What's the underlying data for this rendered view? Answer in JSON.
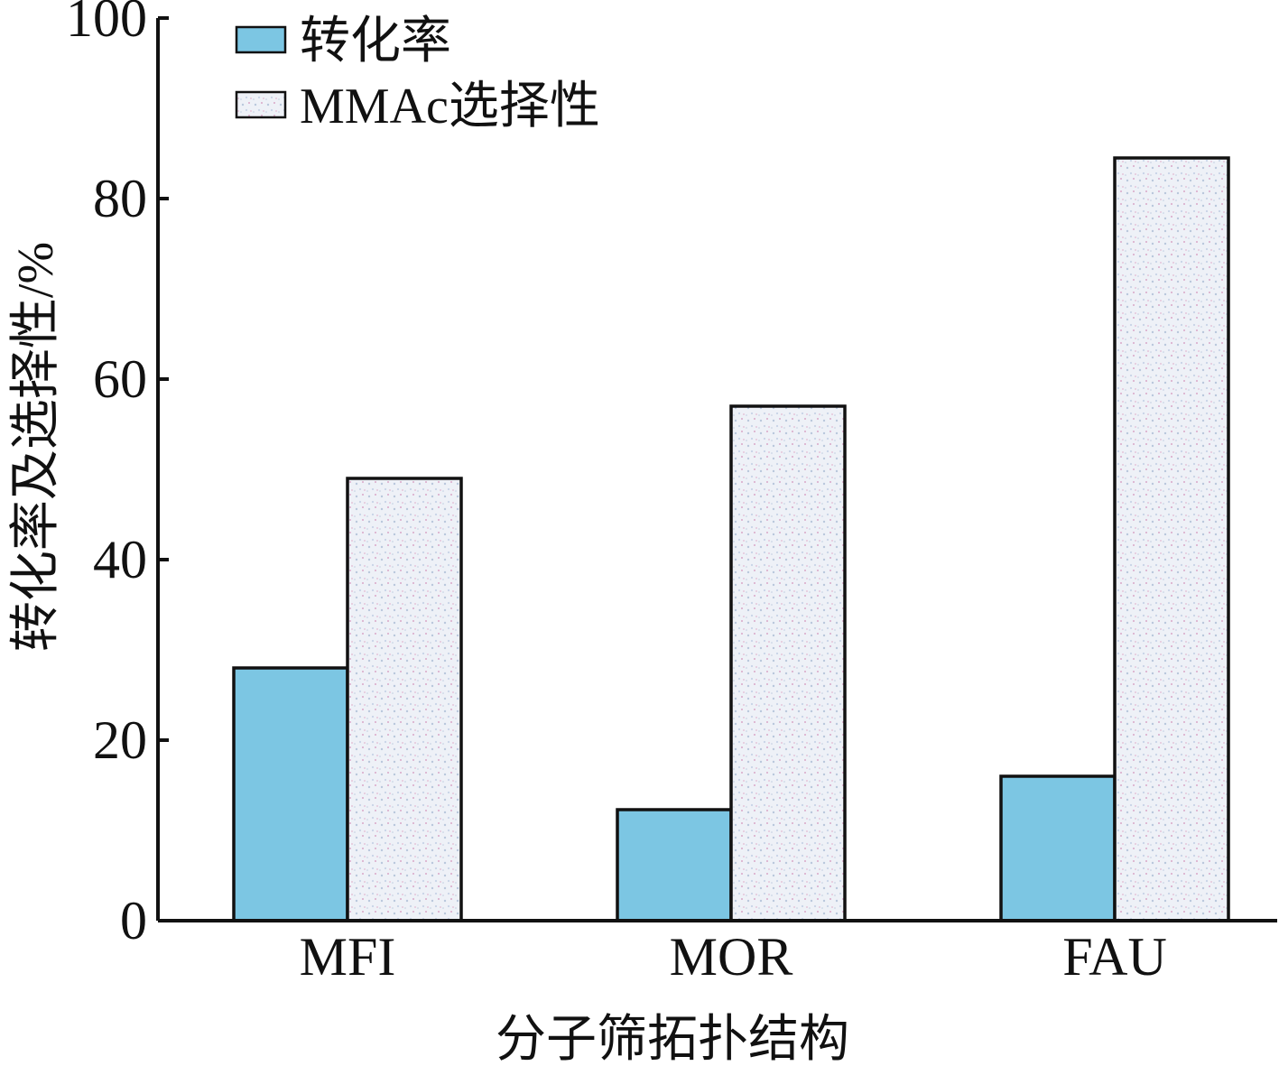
{
  "chart_data": {
    "type": "bar",
    "categories": [
      "MFI",
      "MOR",
      "FAU"
    ],
    "series": [
      {
        "name": "转化率",
        "values": [
          28,
          12.3,
          16
        ]
      },
      {
        "name": "MMAc选择性",
        "values": [
          49,
          57,
          84.5
        ]
      }
    ],
    "title": "",
    "xlabel": "分子筛拓扑结构",
    "ylabel": "转化率及选择性/%",
    "ylim": [
      0,
      100
    ],
    "yticks": [
      0,
      20,
      40,
      60,
      80,
      100
    ],
    "grid": false,
    "legend_position": "top-left",
    "colors": {
      "conversion": "#7cc6e3",
      "selectivity": "#f1f3f8",
      "selectivity_speckle": "#d9a7c8",
      "axis": "#111111"
    }
  }
}
